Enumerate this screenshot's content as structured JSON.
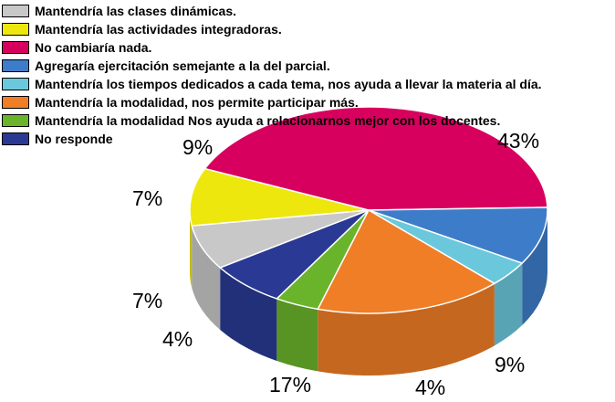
{
  "chart_data": {
    "type": "pie",
    "style": "3d",
    "legend_position": "top-left",
    "title": "",
    "categories": [
      "Mantendría las clases dinámicas.",
      "Mantendría las actividades integradoras.",
      "No cambiaría nada.",
      "Agregaría ejercitación semejante a la del parcial.",
      "Mantendría los tiempos dedicados a cada tema, nos ayuda a llevar la materia al día.",
      "Mantendría la modalidad, nos permite participar más.",
      "Mantendría la modalidad Nos ayuda a relacionarnos mejor con los docentes.",
      "No responde"
    ],
    "values": [
      7,
      9,
      43,
      9,
      4,
      17,
      4,
      7
    ],
    "value_labels": [
      "7%",
      "9%",
      "43%",
      "9%",
      "4%",
      "17%",
      "4%",
      "7%"
    ],
    "colors": [
      "#c8c8c8",
      "#ede70e",
      "#d8005e",
      "#3d7cc8",
      "#6bc8dc",
      "#f07e26",
      "#6ab42c",
      "#2a3a94"
    ]
  }
}
